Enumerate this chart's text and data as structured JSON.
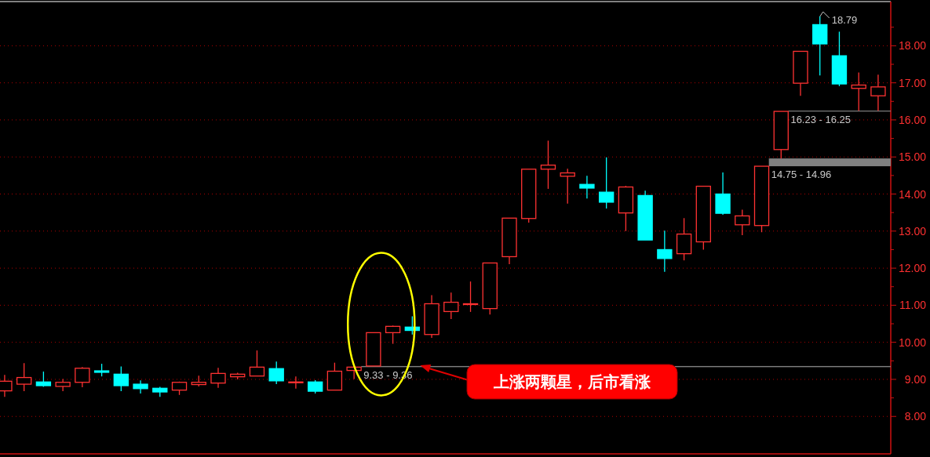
{
  "chart_data": {
    "type": "candlestick",
    "categories": [
      null,
      null,
      null,
      null,
      null,
      null,
      null,
      null,
      null,
      null,
      null,
      null,
      null,
      null,
      null,
      null,
      null,
      null,
      null,
      null,
      null,
      null,
      null,
      null,
      null,
      null,
      null,
      null,
      null,
      null,
      null,
      null,
      null,
      null,
      null,
      null,
      null,
      null,
      null,
      null,
      null,
      null,
      null,
      null,
      null,
      null
    ],
    "ohlc": [
      [
        8.69,
        9.12,
        8.53,
        8.95
      ],
      [
        8.87,
        9.44,
        8.68,
        9.05
      ],
      [
        8.93,
        9.21,
        8.8,
        8.83
      ],
      [
        8.81,
        9.01,
        8.68,
        8.92
      ],
      [
        8.92,
        9.33,
        8.79,
        9.3
      ],
      [
        9.23,
        9.42,
        9.08,
        9.19
      ],
      [
        9.14,
        9.35,
        8.68,
        8.83
      ],
      [
        8.87,
        8.97,
        8.62,
        8.75
      ],
      [
        8.76,
        8.8,
        8.53,
        8.66
      ],
      [
        8.71,
        8.94,
        8.58,
        8.92
      ],
      [
        8.86,
        9.1,
        8.81,
        8.92
      ],
      [
        8.9,
        9.31,
        8.77,
        9.16
      ],
      [
        9.07,
        9.18,
        9.0,
        9.14
      ],
      [
        9.09,
        9.78,
        9.09,
        9.33
      ],
      [
        9.29,
        9.48,
        8.87,
        8.96
      ],
      [
        8.92,
        9.08,
        8.75,
        8.93
      ],
      [
        8.93,
        8.98,
        8.62,
        8.68
      ],
      [
        8.71,
        9.45,
        8.71,
        9.22
      ],
      [
        9.24,
        9.33,
        9.01,
        9.33
      ],
      [
        9.36,
        10.26,
        9.36,
        10.26
      ],
      [
        10.26,
        10.45,
        9.96,
        10.43
      ],
      [
        10.41,
        10.7,
        10.21,
        10.32
      ],
      [
        10.21,
        11.27,
        10.12,
        11.04
      ],
      [
        10.83,
        11.34,
        10.63,
        11.08
      ],
      [
        11.03,
        11.64,
        10.82,
        11.04
      ],
      [
        10.91,
        12.14,
        10.75,
        12.14
      ],
      [
        12.31,
        13.35,
        12.11,
        13.35
      ],
      [
        13.34,
        14.67,
        13.23,
        14.67
      ],
      [
        14.67,
        15.44,
        14.14,
        14.78
      ],
      [
        14.48,
        14.68,
        13.74,
        14.57
      ],
      [
        14.26,
        14.49,
        13.88,
        14.16
      ],
      [
        14.05,
        14.99,
        13.61,
        13.78
      ],
      [
        13.49,
        14.22,
        13.0,
        14.19
      ],
      [
        13.96,
        14.09,
        12.76,
        12.76
      ],
      [
        12.5,
        13.01,
        11.9,
        12.26
      ],
      [
        12.39,
        13.35,
        12.21,
        12.92
      ],
      [
        12.71,
        14.21,
        12.5,
        14.21
      ],
      [
        14.0,
        14.58,
        13.44,
        13.48
      ],
      [
        13.17,
        13.58,
        12.89,
        13.41
      ],
      [
        13.15,
        14.75,
        12.97,
        14.75
      ],
      [
        15.2,
        16.23,
        14.96,
        16.23
      ],
      [
        16.99,
        17.85,
        16.65,
        17.85
      ],
      [
        18.57,
        18.79,
        17.2,
        18.05
      ],
      [
        17.73,
        18.38,
        16.91,
        16.97
      ],
      [
        16.85,
        17.28,
        16.25,
        16.94
      ],
      [
        16.65,
        17.22,
        16.25,
        16.89
      ]
    ],
    "colors": [
      "#ff3232",
      "#ff3232",
      "#00ffff",
      "#ff3232",
      "#ff3232",
      "#00ffff",
      "#00ffff",
      "#00ffff",
      "#00ffff",
      "#ff3232",
      "#ff3232",
      "#ff3232",
      "#ff3232",
      "#ff3232",
      "#00ffff",
      "#ff3232",
      "#00ffff",
      "#ff3232",
      "#ff3232",
      "#ff3232",
      "#ff3232",
      "#00ffff",
      "#ff3232",
      "#ff3232",
      "#ff3232",
      "#ff3232",
      "#ff3232",
      "#ff3232",
      "#ff3232",
      "#ff3232",
      "#00ffff",
      "#00ffff",
      "#ff3232",
      "#00ffff",
      "#00ffff",
      "#ff3232",
      "#ff3232",
      "#00ffff",
      "#ff3232",
      "#ff3232",
      "#ff3232",
      "#ff3232",
      "#00ffff",
      "#00ffff",
      "#ff3232",
      "#ff3232"
    ],
    "ylim": [
      6.99,
      19.15
    ],
    "yticks": [
      {
        "value": 8,
        "label": "8.00"
      },
      {
        "value": 8.5,
        "label": null
      },
      {
        "value": 9,
        "label": "9.00"
      },
      {
        "value": 9.5,
        "label": null
      },
      {
        "value": 10,
        "label": "10.00"
      },
      {
        "value": 10.5,
        "label": null
      },
      {
        "value": 11,
        "label": "11.00"
      },
      {
        "value": 11.5,
        "label": null
      },
      {
        "value": 12,
        "label": "12.00"
      },
      {
        "value": 12.5,
        "label": null
      },
      {
        "value": 13,
        "label": "13.00"
      },
      {
        "value": 13.5,
        "label": null
      },
      {
        "value": 14,
        "label": "14.00"
      },
      {
        "value": 14.5,
        "label": null
      },
      {
        "value": 15,
        "label": "15.00"
      },
      {
        "value": 15.5,
        "label": null
      },
      {
        "value": 16,
        "label": "16.00"
      },
      {
        "value": 16.5,
        "label": null
      },
      {
        "value": 17,
        "label": "17.00"
      },
      {
        "value": 17.5,
        "label": null
      },
      {
        "value": 18,
        "label": "18.00"
      },
      {
        "value": 18.5,
        "label": null
      }
    ],
    "grid": "y",
    "tick_labels": "y",
    "bands": [
      {
        "axis": "y",
        "from": 9.33,
        "to": 9.36,
        "label": "9.33 - 9.36",
        "color": "#808080"
      },
      {
        "axis": "y",
        "from": 14.75,
        "to": 14.96,
        "label": "14.75 - 14.96",
        "color": "#808080"
      },
      {
        "axis": "y",
        "from": 16.23,
        "to": 16.25,
        "label": "16.23 - 16.25",
        "color": "#808080"
      }
    ],
    "annotations": [
      "18.79",
      "上涨两颗星，后市看涨"
    ]
  }
}
